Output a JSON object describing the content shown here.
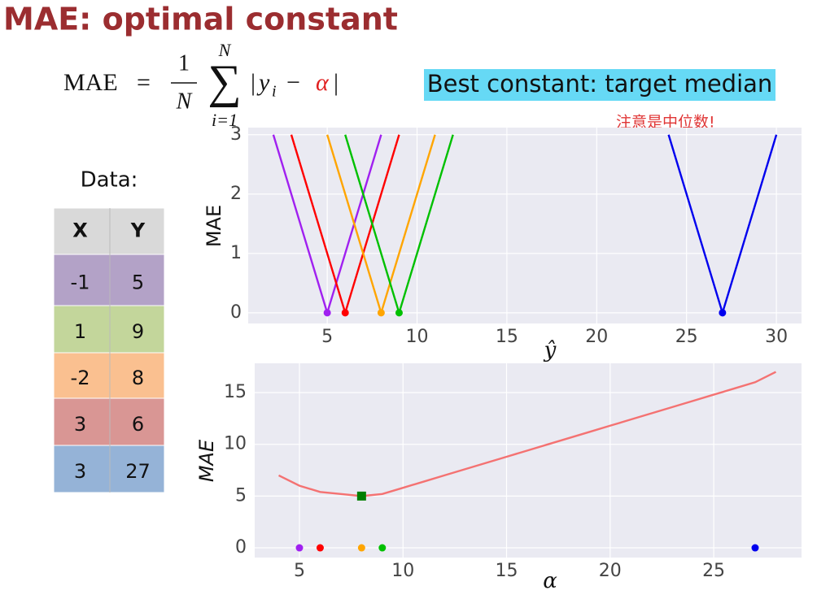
{
  "header": {
    "title": "MAE: optimal constant"
  },
  "formula": {
    "lhs": "MAE",
    "eq": "=",
    "num": "1",
    "den": "N",
    "sum_top": "N",
    "sum_sign": "∑",
    "sum_bottom": "i=1",
    "abs_open": "|",
    "y": "y",
    "sub": "i",
    "minus": "−",
    "alpha": "α",
    "abs_close": "|"
  },
  "banner": "Best constant:  target median",
  "note": "注意是中位数!",
  "table": {
    "caption": "Data:",
    "columns": [
      "X",
      "Y"
    ],
    "rows": [
      [
        "-1",
        "5"
      ],
      [
        "1",
        "9"
      ],
      [
        "-2",
        "8"
      ],
      [
        "3",
        "6"
      ],
      [
        "3",
        "27"
      ]
    ]
  },
  "chart_data": [
    {
      "type": "line",
      "x_label": "ŷ",
      "y_label": "MAE",
      "xlim": [
        0.6,
        31.4
      ],
      "ylim": [
        -0.18,
        3.12
      ],
      "xticks": [
        5,
        10,
        15,
        20,
        25,
        30
      ],
      "yticks": [
        0,
        1,
        2,
        3
      ],
      "grid": true,
      "series": [
        {
          "type": "line",
          "color": "#a020f0",
          "x": [
            2,
            5,
            8
          ],
          "values": [
            3,
            0,
            3
          ]
        },
        {
          "type": "line",
          "color": "#ff0000",
          "x": [
            3,
            6,
            9
          ],
          "values": [
            3,
            0,
            3
          ]
        },
        {
          "type": "line",
          "color": "#ffa500",
          "x": [
            5,
            8,
            11
          ],
          "values": [
            3,
            0,
            3
          ]
        },
        {
          "type": "line",
          "color": "#00c000",
          "x": [
            6,
            9,
            12
          ],
          "values": [
            3,
            0,
            3
          ]
        },
        {
          "type": "line",
          "color": "#0000ee",
          "x": [
            24,
            27,
            30
          ],
          "values": [
            3,
            0,
            3
          ]
        },
        {
          "type": "scatter",
          "marker": "circle",
          "colors": [
            "#a020f0",
            "#ff0000",
            "#ffa500",
            "#00c000",
            "#0000ee"
          ],
          "x": [
            5,
            6,
            8,
            9,
            27
          ],
          "values": [
            0,
            0,
            0,
            0,
            0
          ]
        }
      ]
    },
    {
      "type": "line",
      "x_label": "α",
      "y_label": "MAE",
      "xlim": [
        2.84,
        29.24
      ],
      "ylim": [
        -0.94,
        17.83
      ],
      "xticks": [
        5,
        10,
        15,
        20,
        25
      ],
      "yticks": [
        0,
        5,
        10,
        15
      ],
      "grid": true,
      "series": [
        {
          "type": "line",
          "color": "#f47272",
          "x": [
            4,
            5,
            6,
            7,
            8,
            9,
            10,
            11,
            12,
            13,
            14,
            15,
            16,
            17,
            18,
            19,
            20,
            21,
            22,
            23,
            24,
            25,
            26,
            27,
            28
          ],
          "values": [
            7,
            6,
            5.4,
            5.2,
            5,
            5.2,
            5.8,
            6.4,
            7.0,
            7.6,
            8.2,
            8.8,
            9.4,
            10,
            10.6,
            11.2,
            11.8,
            12.4,
            13,
            13.6,
            14.2,
            14.8,
            15.4,
            16,
            17
          ]
        },
        {
          "type": "scatter",
          "marker": "circle",
          "colors": [
            "#a020f0",
            "#ff0000",
            "#ffa500",
            "#00c000",
            "#0000ee"
          ],
          "x": [
            5,
            6,
            8,
            9,
            27
          ],
          "values": [
            0,
            0,
            0,
            0,
            0
          ]
        },
        {
          "type": "scatter",
          "marker": "square",
          "colors": [
            "#007f00"
          ],
          "x": [
            8
          ],
          "values": [
            5
          ]
        }
      ]
    }
  ]
}
